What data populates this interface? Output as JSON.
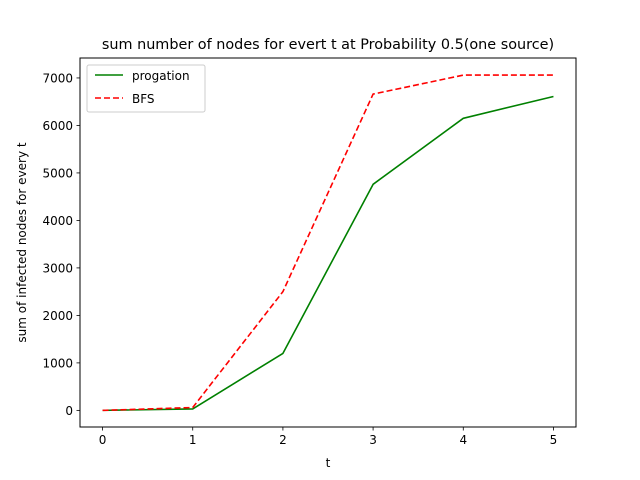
{
  "chart_data": {
    "type": "line",
    "title": "sum number of nodes for evert t at Probability 0.5(one  source)",
    "xlabel": "t",
    "ylabel": "sum of infected nodes for every t",
    "x": [
      0,
      1,
      2,
      3,
      4,
      5
    ],
    "xlim": [
      -0.25,
      5.25
    ],
    "ylim": [
      -350,
      7420
    ],
    "xticks": [
      0,
      1,
      2,
      3,
      4,
      5
    ],
    "yticks": [
      0,
      1000,
      2000,
      3000,
      4000,
      5000,
      6000,
      7000
    ],
    "grid": false,
    "legend_position": "upper left",
    "series": [
      {
        "name": "progation",
        "values": [
          0,
          30,
          1200,
          4760,
          6150,
          6610
        ],
        "color": "#008000",
        "dashed": false
      },
      {
        "name": "BFS",
        "values": [
          0,
          60,
          2500,
          6660,
          7060,
          7060
        ],
        "color": "#ff0000",
        "dashed": true
      }
    ]
  }
}
